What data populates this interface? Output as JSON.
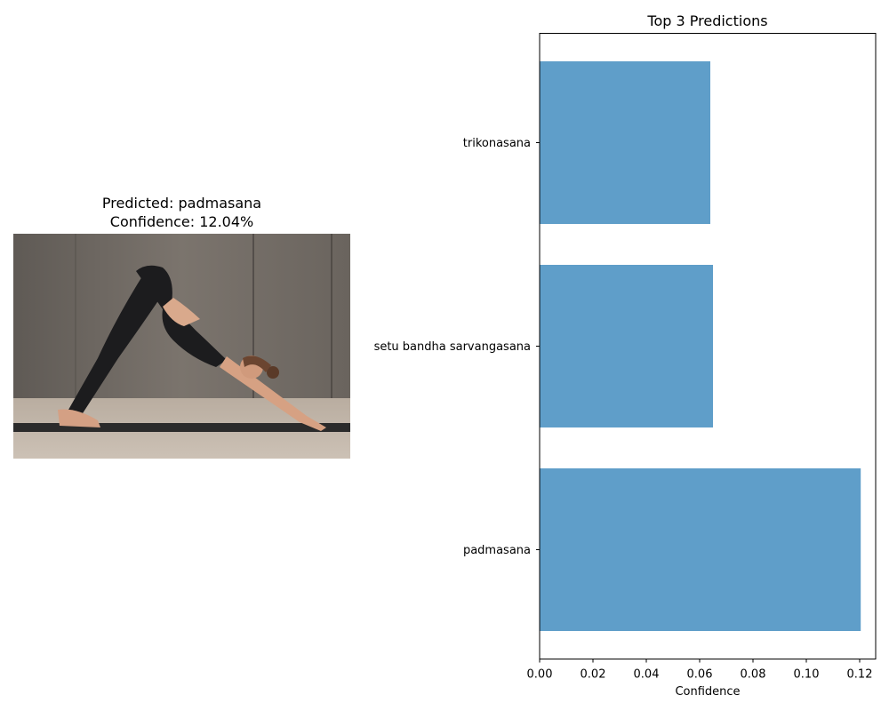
{
  "prediction": {
    "predicted_line": "Predicted: padmasana",
    "confidence_line": "Confidence: 12.04%"
  },
  "colors": {
    "bar": "#5f9ec9",
    "axis": "#000000"
  },
  "chart_data": {
    "type": "bar",
    "orientation": "horizontal",
    "title": "Top 3 Predictions",
    "xlabel": "Confidence",
    "ylabel": "",
    "categories": [
      "padmasana",
      "setu bandha sarvangasana",
      "trikonasana"
    ],
    "values": [
      0.1204,
      0.065,
      0.064
    ],
    "xlim": [
      0.0,
      0.126
    ],
    "xticks": [
      0.0,
      0.02,
      0.04,
      0.06,
      0.08,
      0.1,
      0.12
    ],
    "xtick_labels": [
      "0.00",
      "0.02",
      "0.04",
      "0.06",
      "0.08",
      "0.10",
      "0.12"
    ],
    "grid": false,
    "legend": "none"
  }
}
